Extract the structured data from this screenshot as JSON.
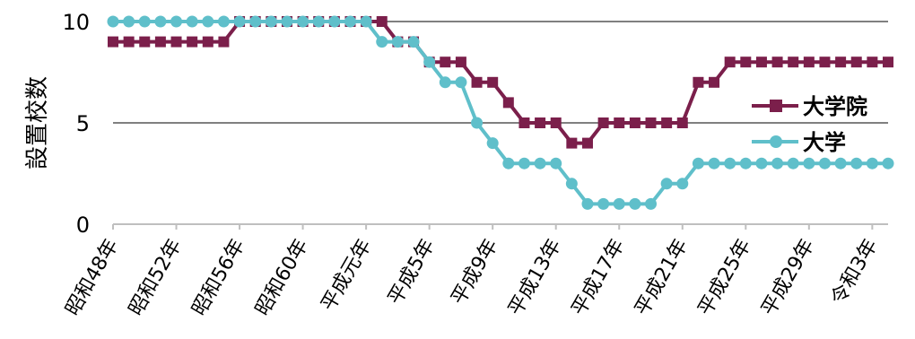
{
  "chart_data": {
    "type": "line",
    "title": "",
    "xlabel": "",
    "ylabel": "設置校数",
    "ylim": [
      0,
      10
    ],
    "y_ticks": [
      0,
      5,
      10
    ],
    "grid": "horizontal",
    "legend_position": "right",
    "x": [
      "昭和48年",
      "昭和49年",
      "昭和50年",
      "昭和51年",
      "昭和52年",
      "昭和53年",
      "昭和54年",
      "昭和55年",
      "昭和56年",
      "昭和57年",
      "昭和58年",
      "昭和59年",
      "昭和60年",
      "昭和61年",
      "昭和62年",
      "昭和63年",
      "平成元年",
      "平成2年",
      "平成3年",
      "平成4年",
      "平成5年",
      "平成6年",
      "平成7年",
      "平成8年",
      "平成9年",
      "平成10年",
      "平成11年",
      "平成12年",
      "平成13年",
      "平成14年",
      "平成15年",
      "平成16年",
      "平成17年",
      "平成18年",
      "平成19年",
      "平成20年",
      "平成21年",
      "平成22年",
      "平成23年",
      "平成24年",
      "平成25年",
      "平成26年",
      "平成27年",
      "平成28年",
      "平成29年",
      "平成30年",
      "令和元年",
      "令和2年",
      "令和3年",
      "令和4年"
    ],
    "x_tick_labels": [
      "昭和48年",
      "昭和52年",
      "昭和56年",
      "昭和60年",
      "平成元年",
      "平成5年",
      "平成9年",
      "平成13年",
      "平成17年",
      "平成21年",
      "平成25年",
      "平成29年",
      "令和3年"
    ],
    "series": [
      {
        "name": "大学院",
        "color": "#7b1f4b",
        "marker": "square",
        "values": [
          9,
          9,
          9,
          9,
          9,
          9,
          9,
          9,
          10,
          10,
          10,
          10,
          10,
          10,
          10,
          10,
          10,
          10,
          9,
          9,
          8,
          8,
          8,
          7,
          7,
          6,
          5,
          5,
          5,
          4,
          4,
          5,
          5,
          5,
          5,
          5,
          5,
          7,
          7,
          8,
          8,
          8,
          8,
          8,
          8,
          8,
          8,
          8,
          8,
          8
        ]
      },
      {
        "name": "大学",
        "color": "#5fbfca",
        "marker": "circle",
        "values": [
          10,
          10,
          10,
          10,
          10,
          10,
          10,
          10,
          10,
          10,
          10,
          10,
          10,
          10,
          10,
          10,
          10,
          9,
          9,
          9,
          8,
          7,
          7,
          5,
          4,
          3,
          3,
          3,
          3,
          2,
          1,
          1,
          1,
          1,
          1,
          2,
          2,
          3,
          3,
          3,
          3,
          3,
          3,
          3,
          3,
          3,
          3,
          3,
          3,
          3
        ]
      }
    ]
  }
}
